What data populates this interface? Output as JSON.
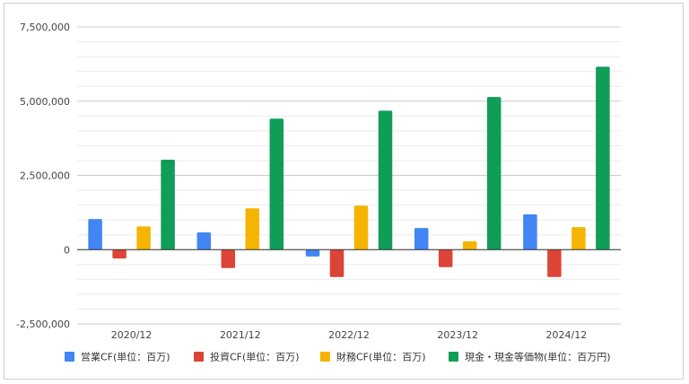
{
  "chart_data": {
    "type": "bar",
    "categories": [
      "2020/12",
      "2021/12",
      "2022/12",
      "2023/12",
      "2024/12"
    ],
    "series": [
      {
        "name": "営業CF(単位：百万)",
        "color": "#4285f4",
        "values": [
          1030000,
          580000,
          -230000,
          730000,
          1190000
        ]
      },
      {
        "name": "投資CF(単位：百万)",
        "color": "#db4437",
        "values": [
          -300000,
          -620000,
          -920000,
          -590000,
          -920000
        ]
      },
      {
        "name": "財務CF(単位：百万)",
        "color": "#f4b400",
        "values": [
          780000,
          1390000,
          1480000,
          280000,
          760000
        ]
      },
      {
        "name": "現金・現金等価物(単位：百万円)",
        "color": "#0f9d58",
        "values": [
          3030000,
          4410000,
          4680000,
          5140000,
          6160000
        ]
      }
    ],
    "yticks": [
      "7,500,000",
      "5,000,000",
      "2,500,000",
      "0",
      "-2,500,000"
    ],
    "ytick_values": [
      7500000,
      5000000,
      2500000,
      0,
      -2500000
    ],
    "ylim": [
      -2500000,
      7500000
    ],
    "grid": true,
    "legend_position": "bottom"
  }
}
